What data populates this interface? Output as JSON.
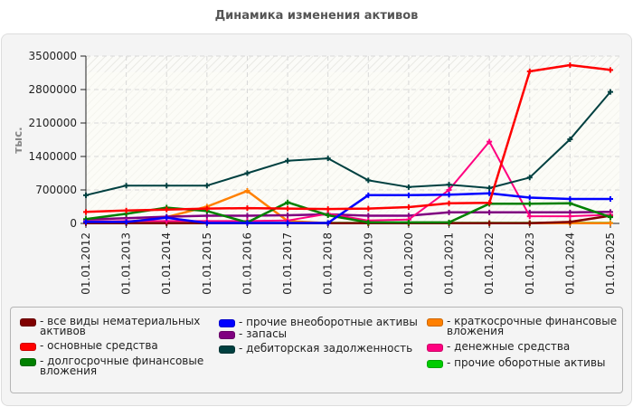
{
  "page": {
    "title": "Динамика изменения активов"
  },
  "chart_data": {
    "type": "line",
    "title": "Динамика изменения активов",
    "xlabel": "",
    "ylabel": "тыс.",
    "ylim": [
      0,
      3500000
    ],
    "y_ticks": [
      "0",
      "700000",
      "1400000",
      "2100000",
      "2800000",
      "3500000"
    ],
    "grid": true,
    "legend_position": "bottom",
    "categories": [
      "01.01.2012",
      "01.01.2013",
      "01.01.2014",
      "01.01.2015",
      "01.01.2016",
      "01.01.2017",
      "01.01.2018",
      "01.01.2019",
      "01.01.2020",
      "01.01.2021",
      "01.01.2022",
      "01.01.2023",
      "01.01.2024",
      "01.01.2025"
    ],
    "series": [
      {
        "name": "все виды нематериальных активов",
        "color": "#800000",
        "values": [
          5000,
          5000,
          5000,
          5000,
          5000,
          5000,
          5000,
          5000,
          5000,
          5000,
          5000,
          5000,
          30000,
          160000
        ]
      },
      {
        "name": "основные средства",
        "color": "#ff0000",
        "values": [
          240000,
          270000,
          290000,
          310000,
          320000,
          310000,
          300000,
          310000,
          340000,
          420000,
          430000,
          3180000,
          3310000,
          3210000
        ]
      },
      {
        "name": "долгосрочные финансовые вложения",
        "color": "#008000",
        "values": [
          90000,
          200000,
          330000,
          260000,
          20000,
          440000,
          170000,
          20000,
          20000,
          20000,
          410000,
          410000,
          420000,
          130000
        ]
      },
      {
        "name": "прочие внеоборотные активы",
        "color": "#0000ff",
        "values": [
          30000,
          30000,
          120000,
          10000,
          10000,
          10000,
          10000,
          590000,
          590000,
          600000,
          630000,
          540000,
          510000,
          510000
        ]
      },
      {
        "name": "запасы",
        "color": "#800080",
        "values": [
          80000,
          110000,
          140000,
          160000,
          160000,
          170000,
          190000,
          160000,
          160000,
          230000,
          230000,
          230000,
          230000,
          240000
        ]
      },
      {
        "name": "дебиторская задолженность",
        "color": "#004040",
        "values": [
          590000,
          790000,
          790000,
          790000,
          1050000,
          1310000,
          1360000,
          900000,
          760000,
          810000,
          740000,
          960000,
          1760000,
          2750000
        ]
      },
      {
        "name": "краткосрочные финансовые вложения",
        "color": "#ff8000",
        "values": [
          20000,
          30000,
          130000,
          350000,
          680000,
          50000,
          5000,
          5000,
          5000,
          5000,
          5000,
          5000,
          5000,
          5000
        ]
      },
      {
        "name": "денежные средства",
        "color": "#ff0080",
        "values": [
          40000,
          50000,
          50000,
          50000,
          50000,
          60000,
          200000,
          60000,
          80000,
          700000,
          1710000,
          150000,
          150000,
          180000
        ]
      },
      {
        "name": "прочие оборотные активы",
        "color": "#00cc00",
        "values": [
          10000,
          10000,
          10000,
          10000,
          10000,
          10000,
          10000,
          10000,
          10000,
          10000,
          10000,
          10000,
          10000,
          10000
        ]
      }
    ]
  },
  "legend": {
    "items": [
      {
        "label": "- все виды нематериальных\nактивов",
        "color": "#800000"
      },
      {
        "label": "- основные средства",
        "color": "#ff0000"
      },
      {
        "label": "- долгосрочные финансовые\nвложения",
        "color": "#008000"
      },
      {
        "label": "- прочие внеоборотные активы",
        "color": "#0000ff"
      },
      {
        "label": "- запасы",
        "color": "#800080"
      },
      {
        "label": "- дебиторская задолженность",
        "color": "#004040"
      },
      {
        "label": "- краткосрочные финансовые\nвложения",
        "color": "#ff8000"
      },
      {
        "label": "- денежные средства",
        "color": "#ff0080"
      },
      {
        "label": "- прочие оборотные активы",
        "color": "#00cc00"
      }
    ]
  }
}
